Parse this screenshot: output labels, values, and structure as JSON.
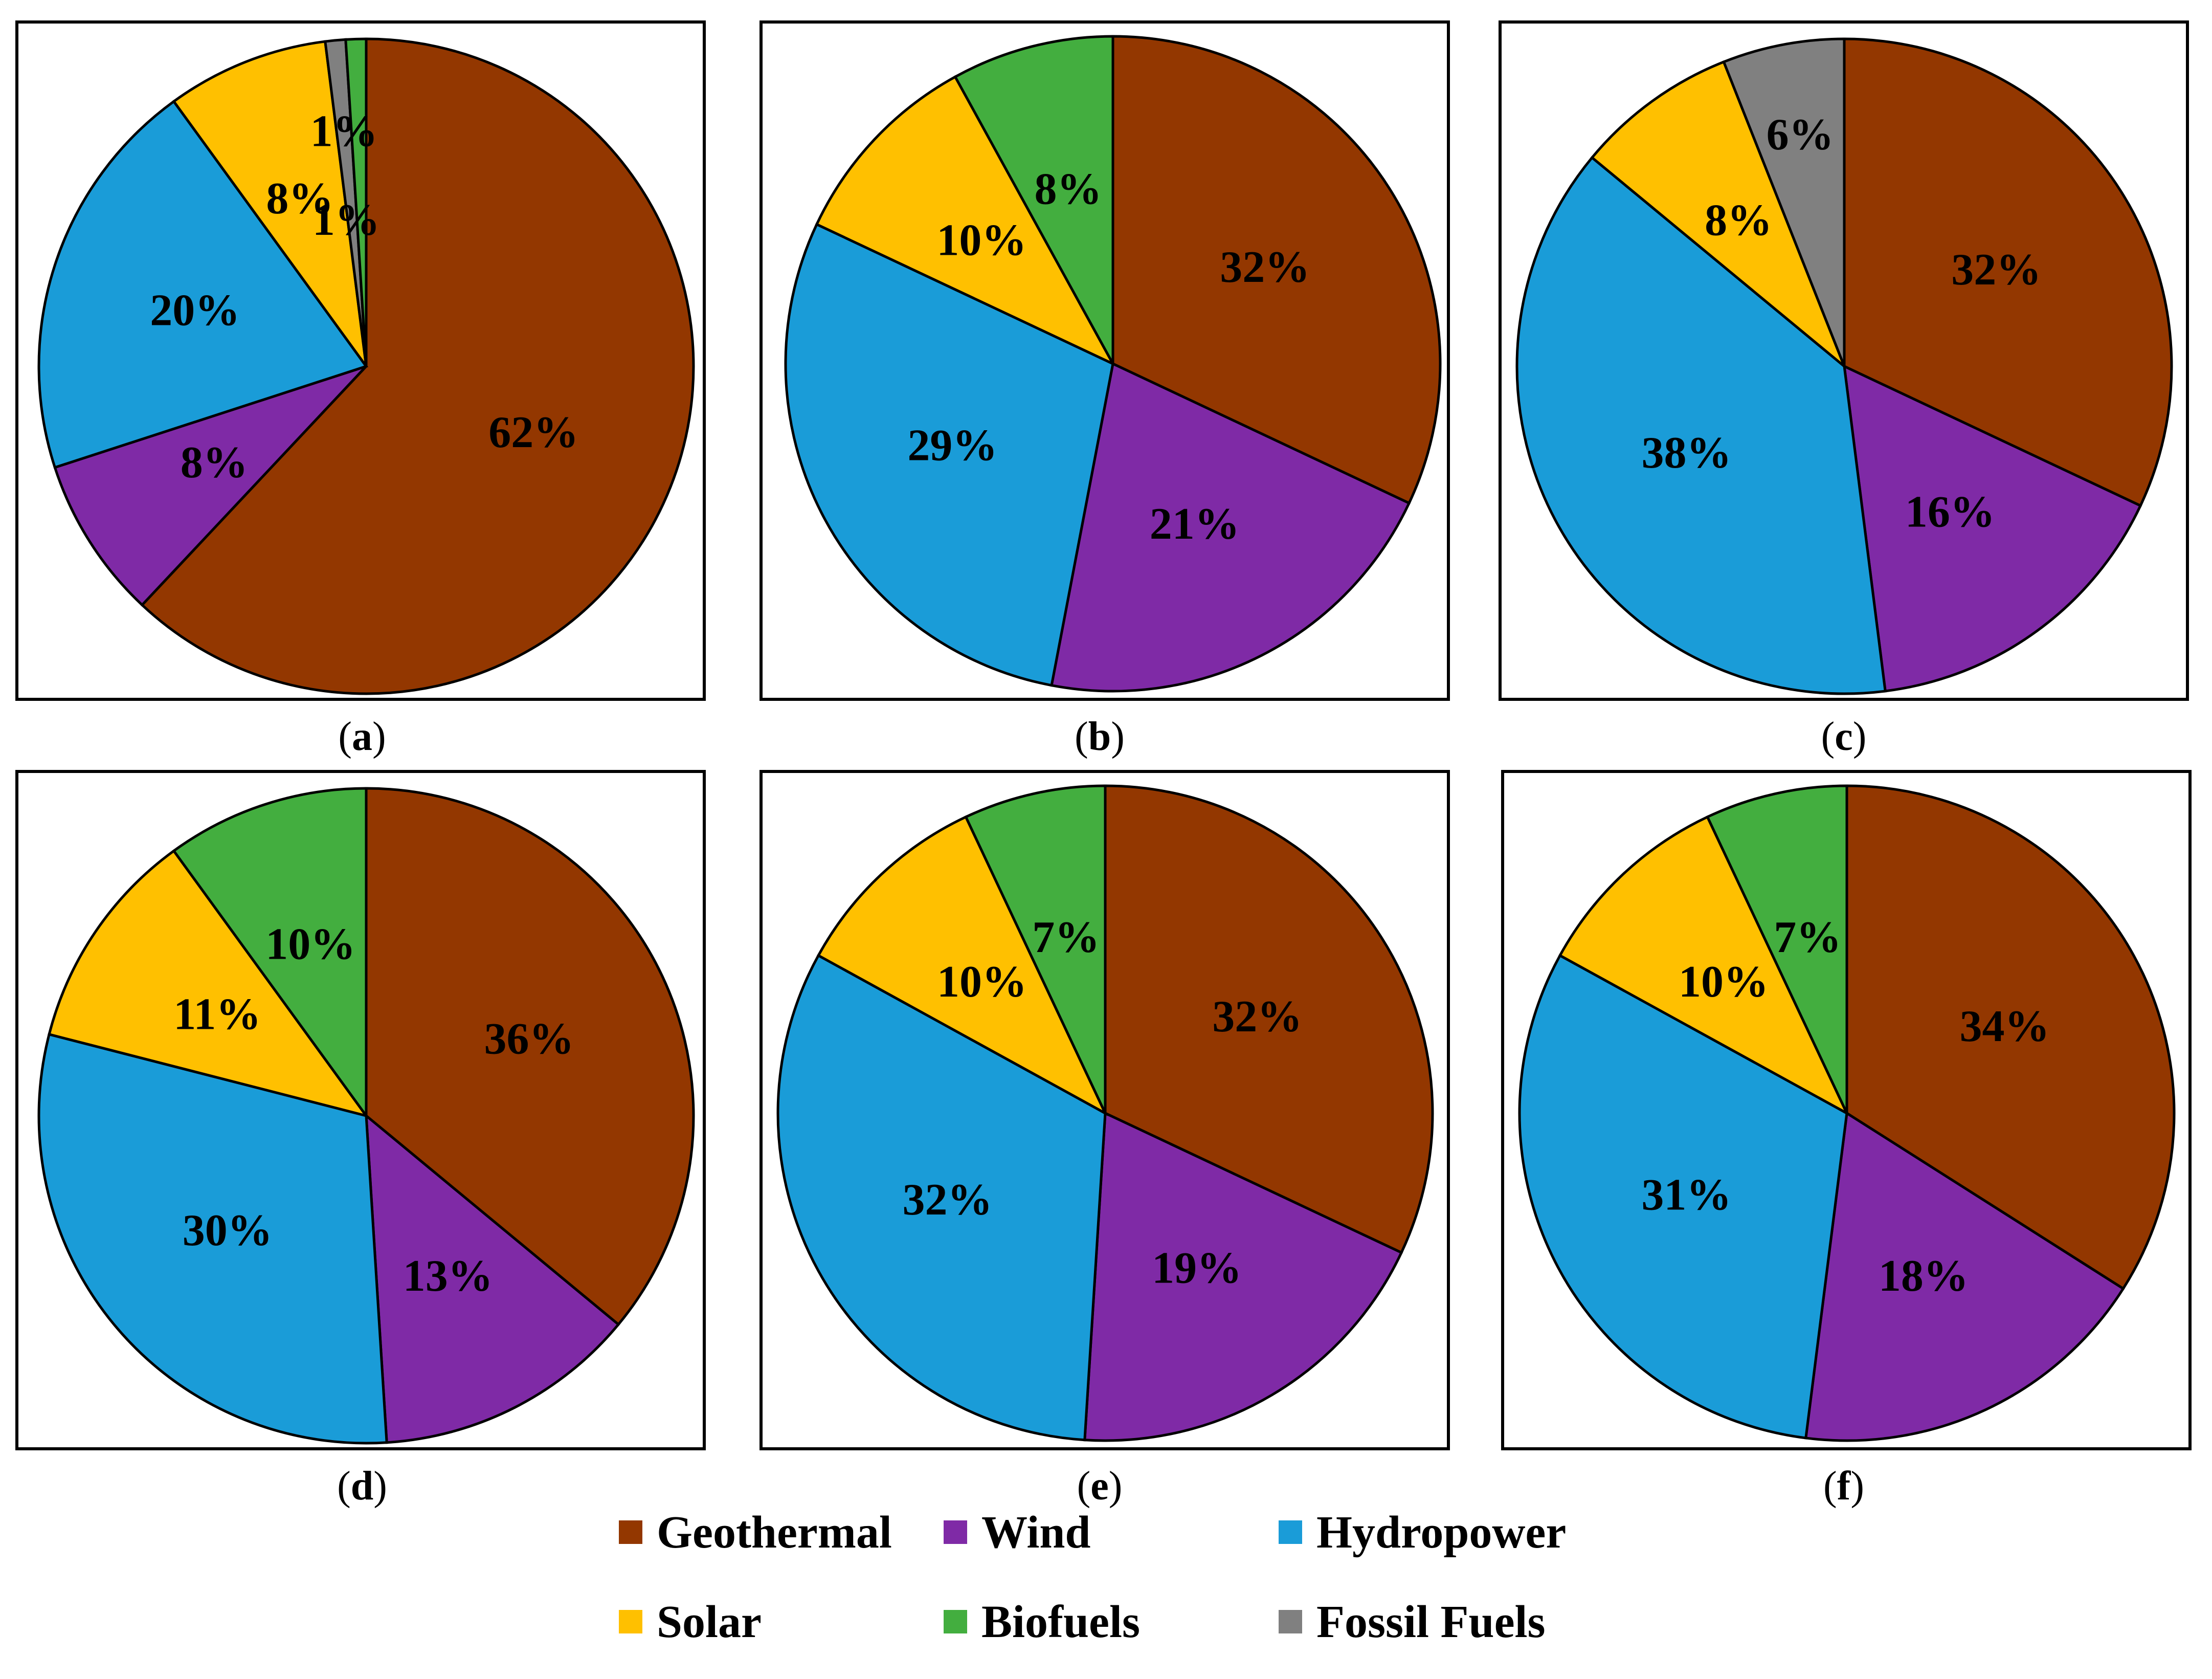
{
  "chart_data": [
    {
      "type": "pie",
      "panel": "a",
      "caption": "a",
      "slices": [
        {
          "category": "Geothermal",
          "value": 62,
          "label": "62%"
        },
        {
          "category": "Wind",
          "value": 8,
          "label": "8%"
        },
        {
          "category": "Hydropower",
          "value": 20,
          "label": "20%"
        },
        {
          "category": "Solar",
          "value": 8,
          "label": "8%"
        },
        {
          "category": "Fossil Fuels",
          "value": 1,
          "label": "1%"
        },
        {
          "category": "Biofuels",
          "value": 1,
          "label": "1%"
        }
      ]
    },
    {
      "type": "pie",
      "panel": "b",
      "caption": "b",
      "slices": [
        {
          "category": "Geothermal",
          "value": 32,
          "label": "32%"
        },
        {
          "category": "Wind",
          "value": 21,
          "label": "21%"
        },
        {
          "category": "Hydropower",
          "value": 29,
          "label": "29%"
        },
        {
          "category": "Solar",
          "value": 10,
          "label": "10%"
        },
        {
          "category": "Biofuels",
          "value": 8,
          "label": "8%"
        }
      ]
    },
    {
      "type": "pie",
      "panel": "c",
      "caption": "c",
      "slices": [
        {
          "category": "Geothermal",
          "value": 32,
          "label": "32%"
        },
        {
          "category": "Wind",
          "value": 16,
          "label": "16%"
        },
        {
          "category": "Hydropower",
          "value": 38,
          "label": "38%"
        },
        {
          "category": "Solar",
          "value": 8,
          "label": "8%"
        },
        {
          "category": "Fossil Fuels",
          "value": 6,
          "label": "6%"
        }
      ]
    },
    {
      "type": "pie",
      "panel": "d",
      "caption": "d",
      "slices": [
        {
          "category": "Geothermal",
          "value": 36,
          "label": "36%"
        },
        {
          "category": "Wind",
          "value": 13,
          "label": "13%"
        },
        {
          "category": "Hydropower",
          "value": 30,
          "label": "30%"
        },
        {
          "category": "Solar",
          "value": 11,
          "label": "11%"
        },
        {
          "category": "Biofuels",
          "value": 10,
          "label": "10%"
        }
      ]
    },
    {
      "type": "pie",
      "panel": "e",
      "caption": "e",
      "slices": [
        {
          "category": "Geothermal",
          "value": 32,
          "label": "32%"
        },
        {
          "category": "Wind",
          "value": 19,
          "label": "19%"
        },
        {
          "category": "Hydropower",
          "value": 32,
          "label": "32%"
        },
        {
          "category": "Solar",
          "value": 10,
          "label": "10%"
        },
        {
          "category": "Biofuels",
          "value": 7,
          "label": "7%"
        }
      ]
    },
    {
      "type": "pie",
      "panel": "f",
      "caption": "f",
      "slices": [
        {
          "category": "Geothermal",
          "value": 34,
          "label": "34%"
        },
        {
          "category": "Wind",
          "value": 18,
          "label": "18%"
        },
        {
          "category": "Hydropower",
          "value": 31,
          "label": "31%"
        },
        {
          "category": "Solar",
          "value": 10,
          "label": "10%"
        },
        {
          "category": "Biofuels",
          "value": 7,
          "label": "7%"
        }
      ]
    }
  ],
  "legend": [
    {
      "name": "Geothermal",
      "color": "#933700"
    },
    {
      "name": "Wind",
      "color": "#7f2aa6"
    },
    {
      "name": "Hydropower",
      "color": "#1a9cd8"
    },
    {
      "name": "Solar",
      "color": "#ffc000"
    },
    {
      "name": "Biofuels",
      "color": "#43ae3f"
    },
    {
      "name": "Fossil Fuels",
      "color": "#808080"
    }
  ]
}
